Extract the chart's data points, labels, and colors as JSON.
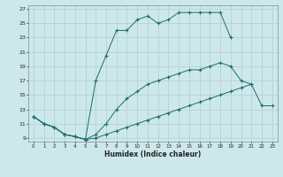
{
  "xlabel": "Humidex (Indice chaleur)",
  "bg_color": "#cde8eb",
  "grid_color": "#aecfd4",
  "line_color": "#1e6b6b",
  "xlim": [
    -0.5,
    23.5
  ],
  "ylim": [
    8.5,
    27.5
  ],
  "xticks": [
    0,
    1,
    2,
    3,
    4,
    5,
    6,
    7,
    8,
    9,
    10,
    11,
    12,
    13,
    14,
    15,
    16,
    17,
    18,
    19,
    20,
    21,
    22,
    23
  ],
  "yticks": [
    9,
    11,
    13,
    15,
    17,
    19,
    21,
    23,
    25,
    27
  ],
  "curve1_x": [
    0,
    1,
    2,
    3,
    4,
    5,
    6,
    7,
    8,
    9,
    10,
    11,
    12,
    13,
    14,
    15,
    16,
    17,
    18,
    19
  ],
  "curve1_y": [
    12,
    11,
    10.5,
    9.5,
    9.2,
    8.8,
    17.0,
    20.5,
    24.0,
    24.0,
    25.5,
    26.0,
    25.0,
    25.5,
    26.5,
    26.5,
    26.5,
    26.5,
    26.5,
    23.0
  ],
  "curve2_x": [
    0,
    1,
    2,
    3,
    4,
    5,
    6,
    7,
    8,
    9,
    10,
    11,
    12,
    13,
    14,
    15,
    16,
    17,
    18,
    19,
    20,
    21
  ],
  "curve2_y": [
    12,
    11,
    10.5,
    9.5,
    9.2,
    8.8,
    9.5,
    11.0,
    13.0,
    14.5,
    15.5,
    16.5,
    17.0,
    17.5,
    18.0,
    18.5,
    18.5,
    19.0,
    19.5,
    19.0,
    17.0,
    16.5
  ],
  "curve3_x": [
    0,
    1,
    2,
    3,
    4,
    5,
    6,
    7,
    8,
    9,
    10,
    11,
    12,
    13,
    14,
    15,
    16,
    17,
    18,
    19,
    20,
    21,
    22,
    23
  ],
  "curve3_y": [
    12,
    11,
    10.5,
    9.5,
    9.2,
    8.8,
    9.0,
    9.5,
    10.0,
    10.5,
    11.0,
    11.5,
    12.0,
    12.5,
    13.0,
    13.5,
    14.0,
    14.5,
    15.0,
    15.5,
    16.0,
    16.5,
    13.5,
    13.5
  ]
}
